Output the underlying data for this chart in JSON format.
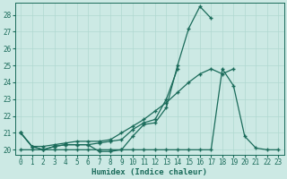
{
  "xlabel": "Humidex (Indice chaleur)",
  "ylabel": "",
  "bg_color": "#cce9e4",
  "grid_color": "#b0d8d0",
  "line_color": "#1a6b5a",
  "xlim": [
    0,
    23
  ],
  "ylim": [
    19.7,
    28.7
  ],
  "yticks": [
    20,
    21,
    22,
    23,
    24,
    25,
    26,
    27,
    28
  ],
  "xticks": [
    0,
    1,
    2,
    3,
    4,
    5,
    6,
    7,
    8,
    9,
    10,
    11,
    12,
    13,
    14,
    15,
    16,
    17,
    18,
    19,
    20,
    21,
    22,
    23
  ],
  "series_peak": [
    21.0,
    20.2,
    20.0,
    20.2,
    20.3,
    20.3,
    20.3,
    19.9,
    19.9,
    20.0,
    20.8,
    21.5,
    21.6,
    22.5,
    25.0,
    27.2,
    28.5,
    27.8,
    null,
    null,
    null,
    null,
    null,
    null
  ],
  "series_mid1": [
    21.0,
    20.2,
    20.0,
    20.2,
    20.3,
    20.3,
    20.3,
    20.4,
    20.5,
    20.6,
    21.2,
    21.6,
    21.8,
    23.0,
    24.8,
    null,
    null,
    null,
    null,
    null,
    null,
    null,
    null,
    null
  ],
  "series_mid2": [
    21.0,
    20.2,
    20.2,
    20.3,
    20.4,
    20.5,
    20.5,
    20.5,
    20.6,
    21.0,
    21.4,
    21.8,
    22.3,
    22.8,
    23.4,
    24.0,
    24.5,
    24.8,
    24.5,
    24.8,
    null,
    null,
    null,
    null
  ],
  "series_flat": [
    20.0,
    20.0,
    20.0,
    20.0,
    20.0,
    20.0,
    20.0,
    20.0,
    20.0,
    20.0,
    20.0,
    20.0,
    20.0,
    20.0,
    20.0,
    20.0,
    20.0,
    20.0,
    24.8,
    23.8,
    20.8,
    20.1,
    20.0,
    20.0
  ]
}
